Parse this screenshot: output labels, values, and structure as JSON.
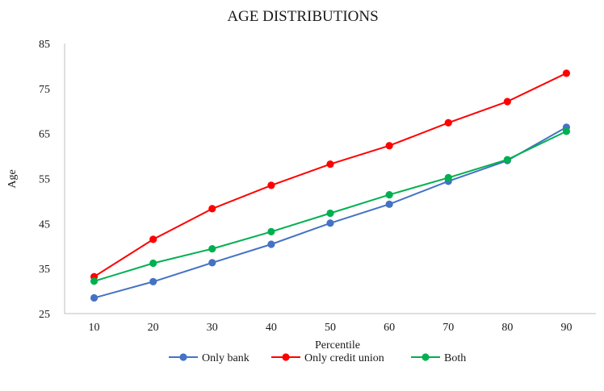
{
  "chart_data": {
    "type": "line",
    "title": "AGE DISTRIBUTIONS",
    "xlabel": "Percentile",
    "ylabel": "Age",
    "x": [
      10,
      20,
      30,
      40,
      50,
      60,
      70,
      80,
      90
    ],
    "ylim": [
      25,
      85
    ],
    "yticks": [
      25,
      35,
      45,
      55,
      65,
      75,
      85
    ],
    "grid": false,
    "legend_position": "bottom",
    "series": [
      {
        "name": "Only bank",
        "color": "#4472c4",
        "values": [
          28.5,
          32.1,
          36.3,
          40.4,
          45.1,
          49.3,
          54.4,
          59.0,
          66.4
        ]
      },
      {
        "name": "Only credit union",
        "color": "#ff0000",
        "values": [
          33.2,
          41.5,
          48.3,
          53.5,
          58.2,
          62.3,
          67.4,
          72.1,
          78.4
        ]
      },
      {
        "name": "Both",
        "color": "#00b050",
        "values": [
          32.2,
          36.2,
          39.4,
          43.2,
          47.3,
          51.4,
          55.2,
          59.2,
          65.5
        ]
      }
    ]
  }
}
